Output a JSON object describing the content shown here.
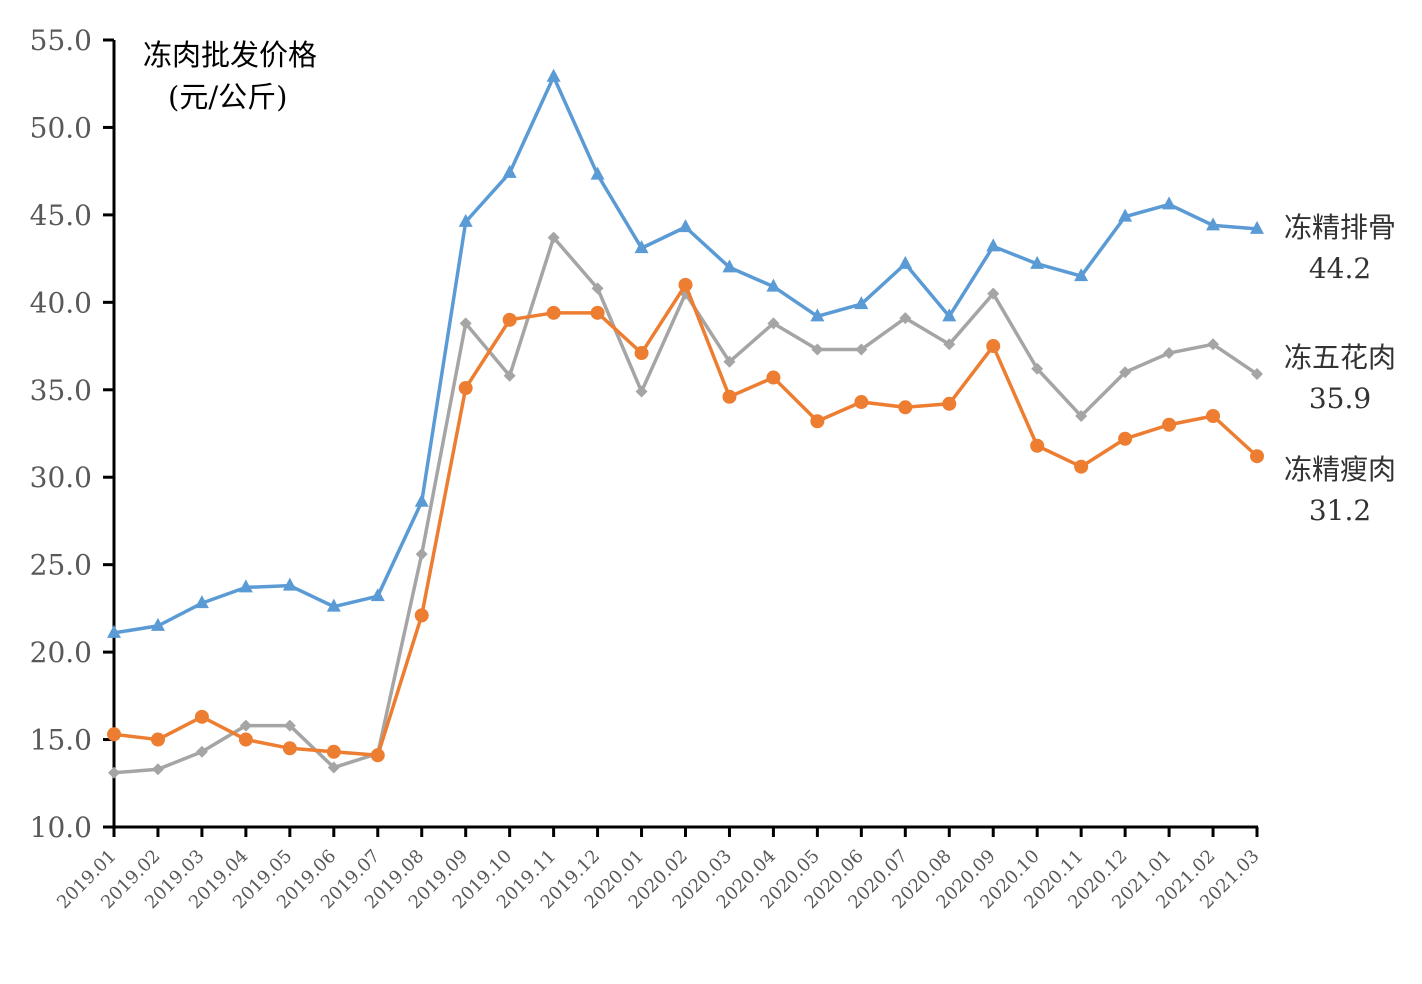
{
  "chart_data": {
    "type": "line",
    "title": "冻肉批发价格",
    "unit_label": "(元/公斤)",
    "xlabel": "",
    "ylabel": "",
    "ylim": [
      10,
      55
    ],
    "yticks": [
      "10.0",
      "15.0",
      "20.0",
      "25.0",
      "30.0",
      "35.0",
      "40.0",
      "45.0",
      "50.0",
      "55.0"
    ],
    "ytick_values": [
      10,
      15,
      20,
      25,
      30,
      35,
      40,
      45,
      50,
      55
    ],
    "grid": false,
    "legend": "inline end labels (right)",
    "categories": [
      "2019.01",
      "2019.02",
      "2019.03",
      "2019.04",
      "2019.05",
      "2019.06",
      "2019.07",
      "2019.08",
      "2019.09",
      "2019.10",
      "2019.11",
      "2019.12",
      "2020.01",
      "2020.02",
      "2020.03",
      "2020.04",
      "2020.05",
      "2020.06",
      "2020.07",
      "2020.08",
      "2020.09",
      "2020.10",
      "2020.11",
      "2020.12",
      "2021.01",
      "2021.02",
      "2021.03"
    ],
    "series": [
      {
        "name": "冻精排骨",
        "end_label": "44.2",
        "color": "#5B9BD5",
        "marker": "triangle",
        "values": [
          21.1,
          21.5,
          22.8,
          23.7,
          23.8,
          22.6,
          23.2,
          28.6,
          44.6,
          47.4,
          52.9,
          47.3,
          43.1,
          44.3,
          42.0,
          40.9,
          39.2,
          39.9,
          42.2,
          39.2,
          43.2,
          42.2,
          41.5,
          44.9,
          45.6,
          44.4,
          44.2
        ]
      },
      {
        "name": "冻五花肉",
        "end_label": "35.9",
        "color": "#A5A5A5",
        "marker": "diamond",
        "values": [
          13.1,
          13.3,
          14.3,
          15.8,
          15.8,
          13.4,
          14.2,
          25.6,
          38.8,
          35.8,
          43.7,
          40.8,
          34.9,
          40.5,
          36.6,
          38.8,
          37.3,
          37.3,
          39.1,
          37.6,
          40.5,
          36.2,
          33.5,
          36.0,
          37.1,
          37.6,
          35.9
        ]
      },
      {
        "name": "冻精瘦肉",
        "end_label": "31.2",
        "color": "#ED7D31",
        "marker": "circle",
        "values": [
          15.3,
          15.0,
          16.3,
          15.0,
          14.5,
          14.3,
          14.1,
          22.1,
          35.1,
          39.0,
          39.4,
          39.4,
          37.1,
          41.0,
          34.6,
          35.7,
          33.2,
          34.3,
          34.0,
          34.2,
          37.5,
          31.8,
          30.6,
          32.2,
          33.0,
          33.5,
          31.2
        ]
      }
    ]
  }
}
